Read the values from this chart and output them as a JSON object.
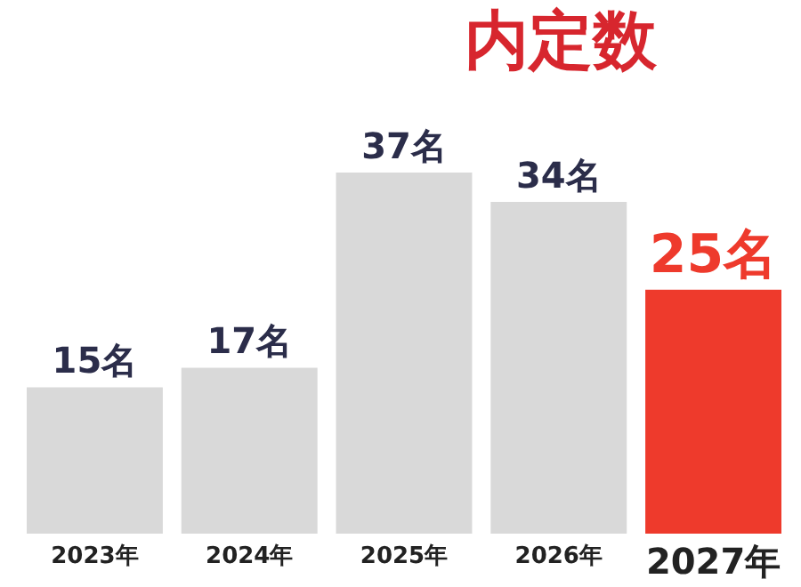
{
  "chart_data": {
    "type": "bar",
    "title": "内定数",
    "categories": [
      "2023年",
      "2024年",
      "2025年",
      "2026年",
      "2027年"
    ],
    "values": [
      15,
      17,
      37,
      34,
      25
    ],
    "colors": [
      "#d9d9d9",
      "#d9d9d9",
      "#d9d9d9",
      "#d9d9d9",
      "#ee3a2c"
    ],
    "value_labels": [
      "15名",
      "17名",
      "37名",
      "34名",
      "25名"
    ],
    "tick_labels": "x"
  }
}
